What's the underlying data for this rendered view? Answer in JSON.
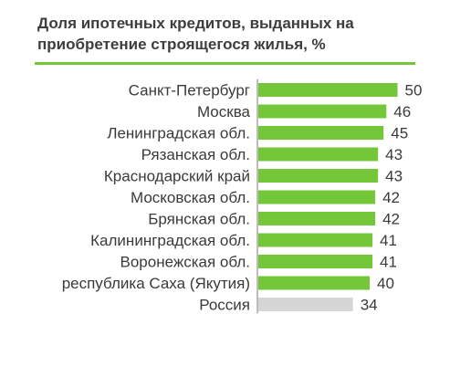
{
  "colors": {
    "bar_highlight": "#74c739",
    "bar_reference": "#d6d6d6",
    "title_rule": "#74c739",
    "axis": "#7a7a7a",
    "text": "#3a3a3a"
  },
  "chart_data": {
    "type": "bar",
    "orientation": "horizontal",
    "title": "Доля ипотечных кредитов, выданных на приобретение строящегося жилья, %",
    "xlabel": "",
    "ylabel": "",
    "xlim": [
      0,
      50
    ],
    "grid": false,
    "legend": "none",
    "categories": [
      "Санкт-Петербург",
      "Москва",
      "Ленинградская обл.",
      "Рязанская обл.",
      "Краснодарский край",
      "Московская обл.",
      "Брянская обл.",
      "Калининградская обл.",
      "Воронежская обл.",
      "республика Саха (Якутия)",
      "Россия"
    ],
    "values": [
      50,
      46,
      45,
      43,
      43,
      42,
      42,
      41,
      41,
      40,
      34
    ],
    "reference_category": "Россия"
  }
}
